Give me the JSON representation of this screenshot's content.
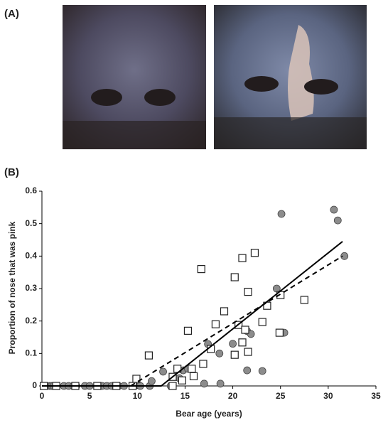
{
  "panel_a": {
    "label": "(A)"
  },
  "chart_data": {
    "type": "scatter",
    "panel_label": "(B)",
    "x_label": "Bear age (years)",
    "y_label": "Proportion of nose that was pink",
    "xlim": [
      0,
      35
    ],
    "ylim": [
      0,
      0.6
    ],
    "xticks": [
      0,
      5,
      10,
      15,
      20,
      25,
      30,
      35
    ],
    "yticks": [
      0,
      0.1,
      0.2,
      0.3,
      0.4,
      0.5,
      0.6
    ],
    "series": [
      {
        "marker": "circle",
        "color": "#8c8c8c",
        "x": [
          0.3,
          0.5,
          0.8,
          1,
          1.2,
          1.5,
          2.3,
          2.8,
          3.3,
          3.6,
          4.5,
          5,
          6.3,
          6.8,
          7.3,
          8,
          8.6,
          9.7,
          10.3,
          11.3,
          11.5,
          12.7,
          13.5,
          14.4,
          14.8,
          15.3,
          17,
          17.4,
          18.6,
          18.7,
          20,
          21.5,
          21.5,
          21.9,
          23.1,
          24.6,
          25.1,
          25.4,
          30.6,
          31,
          31.7
        ],
        "y": [
          0,
          0,
          0,
          0,
          0,
          0,
          0,
          0,
          0,
          0,
          0,
          0,
          0,
          0,
          0,
          0,
          0,
          0,
          0,
          0,
          0.015,
          0.044,
          0,
          0.024,
          0.048,
          0.053,
          0.007,
          0.129,
          0.1,
          0.007,
          0.13,
          0.169,
          0.048,
          0.16,
          0.046,
          0.3,
          0.53,
          0.164,
          0.543,
          0.51,
          0.4
        ]
      },
      {
        "marker": "square",
        "color": "#ffffff",
        "x": [
          0.2,
          1.5,
          3.5,
          5.8,
          7.8,
          9.5,
          9.9,
          11.2,
          13.7,
          13.7,
          14.2,
          14.7,
          15.3,
          15.7,
          15.9,
          16.7,
          16.9,
          17.7,
          18.2,
          19.1,
          20.2,
          20.2,
          20.6,
          21,
          21,
          21.3,
          21.6,
          21.6,
          22.3,
          23.1,
          23.6,
          24.9,
          25,
          27.5
        ],
        "y": [
          0,
          0,
          0,
          0,
          0,
          0,
          0.022,
          0.094,
          0,
          0.028,
          0.053,
          0.017,
          0.17,
          0.053,
          0.03,
          0.36,
          0.068,
          0.114,
          0.19,
          0.23,
          0.335,
          0.096,
          0.188,
          0.394,
          0.134,
          0.173,
          0.29,
          0.105,
          0.41,
          0.197,
          0.247,
          0.164,
          0.28,
          0.265
        ]
      }
    ],
    "fits": [
      {
        "style": "solid",
        "x": [
          0,
          12.5,
          31.5
        ],
        "y": [
          0,
          0,
          0.445
        ]
      },
      {
        "style": "dashed",
        "x": [
          9.3,
          31.5
        ],
        "y": [
          0,
          0.4
        ]
      }
    ]
  }
}
